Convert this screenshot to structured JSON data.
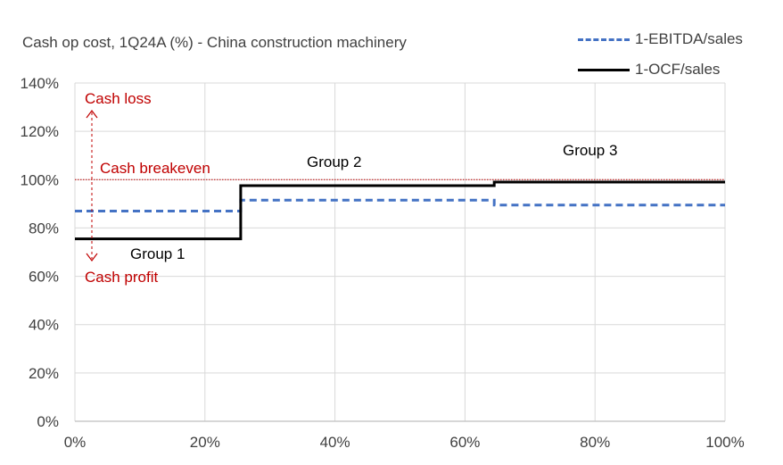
{
  "chart_data": {
    "type": "line",
    "title": "Cash op cost, 1Q24A (%) - China construction machinery",
    "xlabel": "",
    "ylabel": "",
    "xlim": [
      0,
      100
    ],
    "ylim": [
      0,
      140
    ],
    "x_ticks": [
      "0%",
      "20%",
      "40%",
      "60%",
      "80%",
      "100%"
    ],
    "y_ticks": [
      "0%",
      "20%",
      "40%",
      "60%",
      "80%",
      "100%",
      "120%",
      "140%"
    ],
    "grid": true,
    "legend_position": "top-right",
    "series": [
      {
        "name": "1-EBITDA/sales",
        "style": "dashed",
        "color": "#4472C4",
        "steps": [
          {
            "x0": 0,
            "x1": 25.5,
            "y": 87
          },
          {
            "x0": 25.5,
            "x1": 64.5,
            "y": 91.5
          },
          {
            "x0": 64.5,
            "x1": 100,
            "y": 89.5
          }
        ]
      },
      {
        "name": "1-OCF/sales",
        "style": "solid",
        "color": "#000000",
        "steps": [
          {
            "x0": 0,
            "x1": 25.5,
            "y": 75.5
          },
          {
            "x0": 25.5,
            "x1": 64.5,
            "y": 97.5
          },
          {
            "x0": 64.5,
            "x1": 100,
            "y": 99
          }
        ]
      }
    ],
    "reference_line": {
      "y": 100,
      "color": "#C00000",
      "label": "Cash breakeven"
    },
    "annotations": {
      "cash_loss": {
        "text": "Cash loss",
        "color": "#C00000"
      },
      "cash_profit": {
        "text": "Cash profit",
        "color": "#C00000"
      },
      "group1": {
        "text": "Group 1"
      },
      "group2": {
        "text": "Group 2"
      },
      "group3": {
        "text": "Group 3"
      }
    }
  }
}
